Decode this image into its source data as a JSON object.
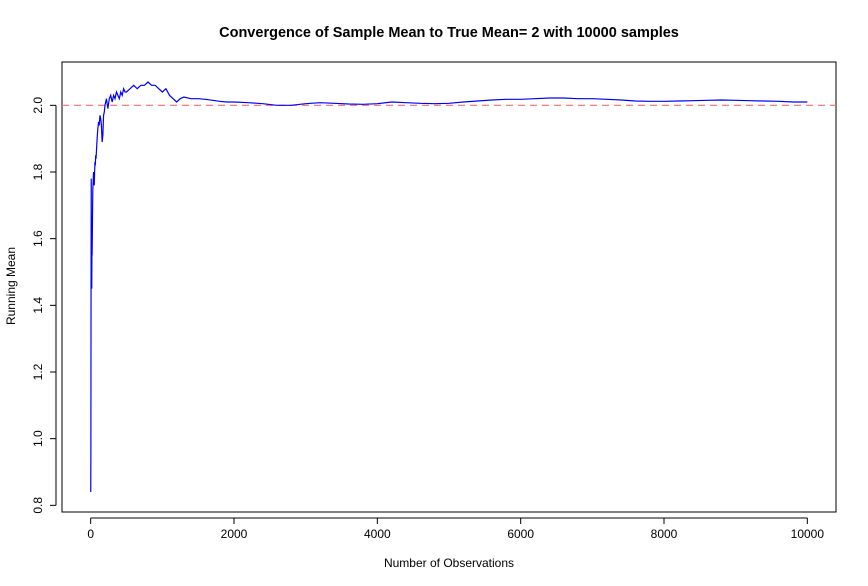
{
  "chart_data": {
    "type": "line",
    "title": "Convergence of Sample Mean to True Mean= 2  with 10000 samples",
    "xlabel": "Number of Observations",
    "ylabel": "Running Mean",
    "xlim": [
      -400,
      10400
    ],
    "ylim": [
      0.78,
      2.13
    ],
    "xticks": [
      0,
      2000,
      4000,
      6000,
      8000,
      10000
    ],
    "xtick_labels": [
      "0",
      "2000",
      "4000",
      "6000",
      "8000",
      "10000"
    ],
    "yticks": [
      0.8,
      1.0,
      1.2,
      1.4,
      1.6,
      1.8,
      2.0
    ],
    "ytick_labels": [
      "0.8",
      "1.0",
      "1.2",
      "1.4",
      "1.6",
      "1.8",
      "2.0"
    ],
    "grid": false,
    "reference_line": {
      "y": 2.0,
      "color": "#ff6b6b",
      "style": "dashed"
    },
    "series": [
      {
        "color": "#0000ff",
        "x": [
          1,
          3,
          5,
          8,
          10,
          12,
          15,
          18,
          20,
          25,
          30,
          35,
          40,
          45,
          50,
          55,
          60,
          65,
          70,
          75,
          80,
          90,
          100,
          110,
          120,
          130,
          140,
          150,
          160,
          170,
          180,
          190,
          200,
          220,
          240,
          260,
          280,
          300,
          320,
          340,
          360,
          380,
          400,
          420,
          440,
          460,
          480,
          500,
          550,
          600,
          650,
          700,
          750,
          800,
          850,
          900,
          950,
          1000,
          1050,
          1100,
          1150,
          1200,
          1250,
          1300,
          1400,
          1500,
          1600,
          1700,
          1800,
          1900,
          2000,
          2200,
          2400,
          2600,
          2800,
          3000,
          3200,
          3400,
          3600,
          3800,
          4000,
          4200,
          4400,
          4600,
          4800,
          5000,
          5200,
          5400,
          5600,
          5800,
          6000,
          6200,
          6400,
          6600,
          6800,
          7000,
          7200,
          7400,
          7600,
          7800,
          8000,
          8200,
          8400,
          8600,
          8800,
          9000,
          9200,
          9400,
          9600,
          9800,
          10000
        ],
        "y": [
          0.84,
          0.95,
          1.4,
          1.78,
          1.55,
          1.5,
          1.45,
          1.6,
          1.55,
          1.65,
          1.75,
          1.77,
          1.8,
          1.78,
          1.76,
          1.8,
          1.83,
          1.82,
          1.85,
          1.84,
          1.86,
          1.9,
          1.93,
          1.95,
          1.94,
          1.97,
          1.96,
          1.94,
          1.89,
          1.91,
          1.97,
          1.98,
          2.0,
          2.02,
          1.99,
          2.02,
          2.03,
          2.01,
          2.03,
          2.02,
          2.04,
          2.03,
          2.02,
          2.04,
          2.03,
          2.05,
          2.04,
          2.04,
          2.05,
          2.06,
          2.05,
          2.06,
          2.06,
          2.07,
          2.06,
          2.06,
          2.05,
          2.04,
          2.05,
          2.03,
          2.02,
          2.01,
          2.02,
          2.025,
          2.02,
          2.02,
          2.018,
          2.015,
          2.012,
          2.01,
          2.01,
          2.008,
          2.005,
          2.0,
          2.0,
          2.005,
          2.008,
          2.006,
          2.004,
          2.003,
          2.005,
          2.01,
          2.008,
          2.006,
          2.005,
          2.006,
          2.01,
          2.013,
          2.016,
          2.018,
          2.018,
          2.02,
          2.022,
          2.022,
          2.02,
          2.02,
          2.018,
          2.016,
          2.013,
          2.012,
          2.012,
          2.013,
          2.014,
          2.015,
          2.016,
          2.015,
          2.014,
          2.013,
          2.012,
          2.01,
          2.01
        ]
      }
    ]
  }
}
